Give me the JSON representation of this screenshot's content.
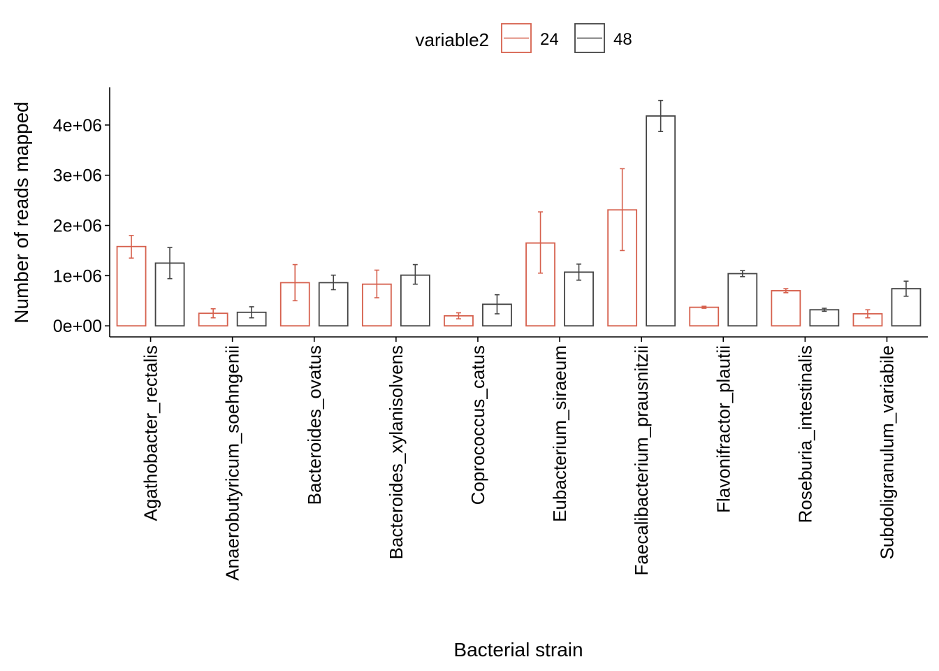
{
  "chart_data": {
    "type": "bar",
    "title": "",
    "xlabel": "Bacterial strain",
    "ylabel": "Number of reads mapped",
    "ylim": [
      -220000,
      4750000
    ],
    "yticks": [
      0,
      1000000,
      2000000,
      3000000,
      4000000
    ],
    "ytick_labels": [
      "0e+00",
      "1e+06",
      "2e+06",
      "3e+06",
      "4e+06"
    ],
    "grid": false,
    "legend": {
      "title": "variable2",
      "placement": "top"
    },
    "categories": [
      "Agathobacter_rectalis",
      "Anaerobutyricum_soehngenii",
      "Bacteroides_ovatus",
      "Bacteroides_xylanisolvens",
      "Coprococcus_catus",
      "Eubacterium_siraeum",
      "Faecalibacterium_prausnitzii",
      "Flavonifractor_plautii",
      "Roseburia_intestinalis",
      "Subdoligranulum_variabile"
    ],
    "series": [
      {
        "name": "24",
        "color": "#d6604d",
        "values": [
          1580000,
          250000,
          860000,
          830000,
          200000,
          1650000,
          2310000,
          370000,
          700000,
          240000
        ],
        "error_low": [
          1350000,
          160000,
          500000,
          560000,
          140000,
          1050000,
          1500000,
          350000,
          660000,
          160000
        ],
        "error_high": [
          1800000,
          340000,
          1220000,
          1110000,
          260000,
          2270000,
          3130000,
          390000,
          740000,
          320000
        ]
      },
      {
        "name": "48",
        "color": "#444444",
        "values": [
          1250000,
          270000,
          860000,
          1010000,
          430000,
          1070000,
          4180000,
          1040000,
          320000,
          740000
        ],
        "error_low": [
          940000,
          160000,
          720000,
          830000,
          240000,
          910000,
          3870000,
          980000,
          290000,
          590000
        ],
        "error_high": [
          1560000,
          380000,
          1010000,
          1220000,
          620000,
          1230000,
          4490000,
          1100000,
          350000,
          890000
        ]
      }
    ]
  }
}
